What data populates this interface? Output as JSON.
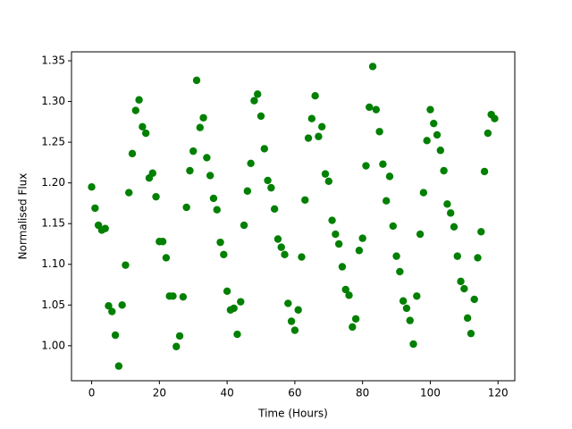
{
  "chart_data": {
    "type": "scatter",
    "x_label": "Time (Hours)",
    "y_label": "Normalised Flux",
    "color": "#008000",
    "x": [
      0,
      1,
      2,
      3,
      4,
      5,
      6,
      7,
      8,
      9,
      10,
      11,
      12,
      13,
      14,
      15,
      16,
      17,
      18,
      19,
      20,
      21,
      22,
      23,
      24,
      25,
      26,
      27,
      28,
      29,
      30,
      31,
      32,
      33,
      34,
      35,
      36,
      37,
      38,
      39,
      40,
      41,
      42,
      43,
      44,
      45,
      46,
      47,
      48,
      49,
      50,
      51,
      52,
      53,
      54,
      55,
      56,
      57,
      58,
      59,
      60,
      61,
      62,
      63,
      64,
      65,
      66,
      67,
      68,
      69,
      70,
      71,
      72,
      73,
      74,
      75,
      76,
      77,
      78,
      79,
      80,
      81,
      82,
      83,
      84,
      85,
      86,
      87,
      88,
      89,
      90,
      91,
      92,
      93,
      94,
      95,
      96,
      97,
      98,
      99,
      100,
      101,
      102,
      103,
      104,
      105,
      106,
      107,
      108,
      109,
      110,
      111,
      112,
      113,
      114,
      115,
      116,
      117,
      118,
      119
    ],
    "values": [
      1.195,
      1.169,
      1.148,
      1.142,
      1.144,
      1.049,
      1.042,
      1.013,
      0.975,
      1.05,
      1.099,
      1.188,
      1.236,
      1.289,
      1.302,
      1.269,
      1.261,
      1.206,
      1.212,
      1.183,
      1.128,
      1.128,
      1.108,
      1.061,
      1.061,
      0.999,
      1.012,
      1.06,
      1.17,
      1.215,
      1.239,
      1.326,
      1.268,
      1.28,
      1.231,
      1.209,
      1.181,
      1.167,
      1.127,
      1.112,
      1.067,
      1.044,
      1.046,
      1.014,
      1.054,
      1.148,
      1.19,
      1.224,
      1.301,
      1.309,
      1.282,
      1.242,
      1.203,
      1.194,
      1.168,
      1.131,
      1.121,
      1.112,
      1.052,
      1.03,
      1.019,
      1.044,
      1.109,
      1.179,
      1.255,
      1.279,
      1.307,
      1.257,
      1.269,
      1.211,
      1.202,
      1.154,
      1.137,
      1.125,
      1.097,
      1.069,
      1.062,
      1.023,
      1.033,
      1.117,
      1.132,
      1.221,
      1.293,
      1.343,
      1.29,
      1.263,
      1.223,
      1.178,
      1.208,
      1.147,
      1.11,
      1.091,
      1.055,
      1.046,
      1.031,
      1.002,
      1.061,
      1.137,
      1.188,
      1.252,
      1.29,
      1.273,
      1.259,
      1.24,
      1.215,
      1.174,
      1.163,
      1.146,
      1.11,
      1.079,
      1.07,
      1.034,
      1.015,
      1.057,
      1.108,
      1.14,
      1.214,
      1.261,
      1.284,
      1.279
    ],
    "xlim": [
      -5.95,
      124.95
    ],
    "ylim": [
      0.957,
      1.361
    ],
    "xticks": [
      0,
      20,
      40,
      60,
      80,
      100,
      120
    ],
    "yticks": [
      {
        "value": 1,
        "label": "1.00"
      },
      1.05,
      {
        "value": 1.1,
        "label": "1.10"
      },
      1.15,
      {
        "value": 1.2,
        "label": "1.20"
      },
      1.25,
      {
        "value": 1.3,
        "label": "1.30"
      },
      1.35
    ]
  }
}
